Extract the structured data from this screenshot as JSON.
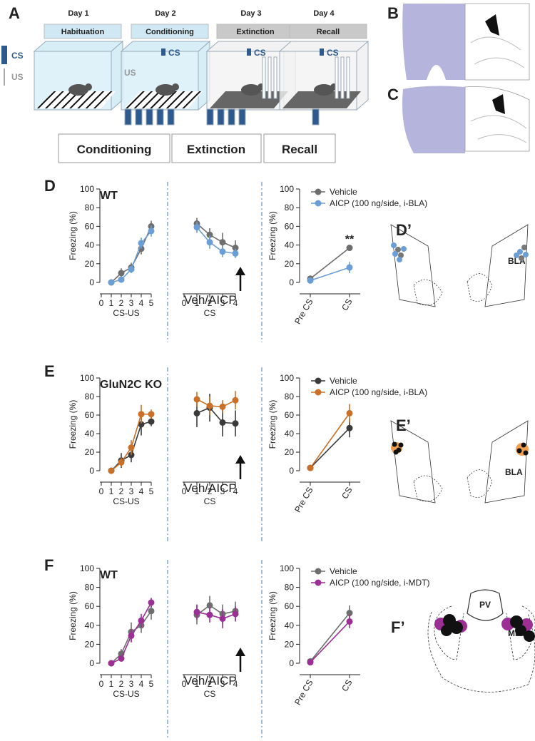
{
  "panel_a": {
    "label": "A",
    "days": [
      {
        "day": "Day 1",
        "phase": "Habituation"
      },
      {
        "day": "Day 2",
        "phase": "Conditioning"
      },
      {
        "day": "Day 3",
        "phase": "Extinction"
      },
      {
        "day": "Day 4",
        "phase": "Recall"
      }
    ],
    "legend": [
      "CS",
      "US"
    ],
    "cs_tag": "CS",
    "us_tag": "US",
    "sessions": [
      "Conditioning",
      "Extinction",
      "Recall"
    ]
  },
  "panel_b": {
    "label": "B"
  },
  "panel_c": {
    "label": "C"
  },
  "panel_d": {
    "label": "D",
    "inset_label": "D’",
    "region": "BLA"
  },
  "panel_e": {
    "label": "E",
    "inset_label": "E’",
    "region": "BLA"
  },
  "panel_f": {
    "label": "F",
    "inset_label": "F’",
    "regions": [
      "PV",
      "MDT"
    ]
  },
  "chart_data": [
    {
      "type": "line",
      "annotation": "WT",
      "xlabel": "CS-US",
      "ylabel": "Freezing (%)",
      "x": [
        1,
        2,
        3,
        4,
        5
      ],
      "xlim": [
        0,
        5
      ],
      "xticks": [
        0,
        1,
        2,
        3,
        4,
        5
      ],
      "ylim": [
        0,
        100
      ],
      "yticks": [
        0,
        20,
        40,
        60,
        80,
        100
      ],
      "series": [
        {
          "color": "#6e6e6e",
          "values": [
            0,
            10,
            16,
            36,
            60
          ],
          "errors": [
            0,
            5,
            5,
            6,
            6
          ]
        },
        {
          "color": "#6b9ed4",
          "values": [
            0,
            3,
            14,
            42,
            55
          ],
          "errors": [
            0,
            3,
            4,
            6,
            6
          ]
        }
      ]
    },
    {
      "type": "line",
      "annotation": "Veh/AICP",
      "xlabel": "CS",
      "x": [
        1,
        2,
        3,
        4
      ],
      "xlim": [
        0,
        4
      ],
      "xticks": [
        0,
        1,
        2,
        3,
        4
      ],
      "ylim": [
        0,
        100
      ],
      "series": [
        {
          "color": "#6e6e6e",
          "values": [
            63,
            51,
            43,
            37
          ],
          "errors": [
            6,
            7,
            10,
            8
          ]
        },
        {
          "color": "#6b9ed4",
          "values": [
            59,
            43,
            33,
            31
          ],
          "errors": [
            6,
            7,
            6,
            5
          ]
        }
      ]
    },
    {
      "type": "line",
      "annotation": "**",
      "ylabel": "Freezing (%)",
      "categories": [
        "Pre CS",
        "CS"
      ],
      "ylim": [
        0,
        100
      ],
      "yticks": [
        0,
        20,
        40,
        60,
        80,
        100
      ],
      "series": [
        {
          "name": "Vehicle",
          "color": "#6e6e6e",
          "values": [
            4,
            37
          ],
          "errors": [
            1,
            3
          ]
        },
        {
          "name": "AICP (100 ng/side, i-BLA)",
          "color": "#6b9ed4",
          "values": [
            2,
            16
          ],
          "errors": [
            1,
            6
          ]
        }
      ]
    },
    {
      "type": "line",
      "annotation": "GluN2C KO",
      "xlabel": "CS-US",
      "ylabel": "Freezing (%)",
      "x": [
        1,
        2,
        3,
        4,
        5
      ],
      "xlim": [
        0,
        5
      ],
      "xticks": [
        0,
        1,
        2,
        3,
        4,
        5
      ],
      "ylim": [
        0,
        100
      ],
      "yticks": [
        0,
        20,
        40,
        60,
        80,
        100
      ],
      "series": [
        {
          "color": "#3a3a3a",
          "values": [
            0,
            11,
            17,
            50,
            53
          ],
          "errors": [
            0,
            8,
            8,
            12,
            5
          ]
        },
        {
          "color": "#c8702a",
          "values": [
            0,
            9,
            25,
            61,
            61
          ],
          "errors": [
            0,
            5,
            8,
            10,
            5
          ]
        }
      ]
    },
    {
      "type": "line",
      "annotation": "Veh/AICP",
      "xlabel": "CS",
      "x": [
        1,
        2,
        3,
        4
      ],
      "xlim": [
        0,
        4
      ],
      "xticks": [
        0,
        1,
        2,
        3,
        4
      ],
      "ylim": [
        0,
        100
      ],
      "series": [
        {
          "color": "#3a3a3a",
          "values": [
            62,
            68,
            52,
            51
          ],
          "errors": [
            15,
            15,
            15,
            14
          ]
        },
        {
          "color": "#c8702a",
          "values": [
            77,
            70,
            69,
            76
          ],
          "errors": [
            8,
            10,
            7,
            10
          ]
        }
      ]
    },
    {
      "type": "line",
      "ylabel": "Freezing (%)",
      "categories": [
        "Pre CS",
        "CS"
      ],
      "ylim": [
        0,
        100
      ],
      "yticks": [
        0,
        20,
        40,
        60,
        80,
        100
      ],
      "series": [
        {
          "name": "Vehicle",
          "color": "#3a3a3a",
          "values": [
            3,
            46
          ],
          "errors": [
            1,
            10
          ]
        },
        {
          "name": "AICP (100 ng/side, i-BLA)",
          "color": "#c8702a",
          "values": [
            3,
            62
          ],
          "errors": [
            1,
            10
          ]
        }
      ]
    },
    {
      "type": "line",
      "annotation": "WT",
      "xlabel": "CS-US",
      "ylabel": "Freezing (%)",
      "x": [
        1,
        2,
        3,
        4,
        5
      ],
      "xlim": [
        0,
        5
      ],
      "xticks": [
        0,
        1,
        2,
        3,
        4,
        5
      ],
      "ylim": [
        0,
        100
      ],
      "yticks": [
        0,
        20,
        40,
        60,
        80,
        100
      ],
      "series": [
        {
          "color": "#6e6e6e",
          "values": [
            0,
            10,
            33,
            40,
            55
          ],
          "errors": [
            0,
            5,
            10,
            8,
            9
          ]
        },
        {
          "color": "#9b2f94",
          "values": [
            0,
            5,
            29,
            45,
            64
          ],
          "errors": [
            0,
            3,
            7,
            7,
            5
          ]
        }
      ]
    },
    {
      "type": "line",
      "annotation": "Veh/AICP",
      "xlabel": "CS",
      "x": [
        1,
        2,
        3,
        4
      ],
      "xlim": [
        0,
        4
      ],
      "xticks": [
        0,
        1,
        2,
        3,
        4
      ],
      "ylim": [
        0,
        100
      ],
      "series": [
        {
          "color": "#6e6e6e",
          "values": [
            51,
            61,
            52,
            55
          ],
          "errors": [
            10,
            10,
            10,
            10
          ]
        },
        {
          "color": "#9b2f94",
          "values": [
            54,
            51,
            47,
            52
          ],
          "errors": [
            8,
            8,
            10,
            8
          ]
        }
      ]
    },
    {
      "type": "line",
      "ylabel": "Freezing (%)",
      "categories": [
        "Pre CS",
        "CS"
      ],
      "ylim": [
        0,
        100
      ],
      "yticks": [
        0,
        20,
        40,
        60,
        80,
        100
      ],
      "series": [
        {
          "name": "Vehicle",
          "color": "#6e6e6e",
          "values": [
            2,
            53
          ],
          "errors": [
            1,
            8
          ]
        },
        {
          "name": "AICP (100 ng/side, i-MDT)",
          "color": "#9b2f94",
          "values": [
            1,
            44
          ],
          "errors": [
            1,
            7
          ]
        }
      ]
    }
  ]
}
